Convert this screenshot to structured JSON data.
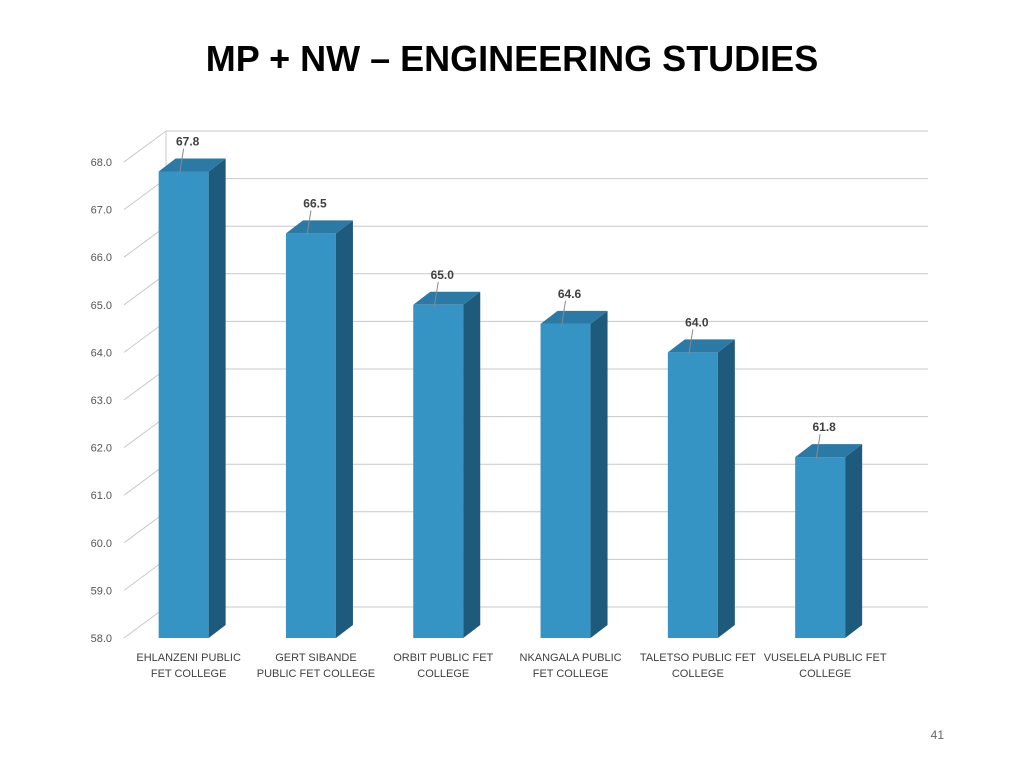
{
  "slide": {
    "title": "MP + NW – ENGINEERING STUDIES",
    "page_number": "41"
  },
  "chart_data": {
    "type": "bar",
    "style": "3d-column",
    "title": "MP + NW – ENGINEERING STUDIES",
    "categories": [
      [
        "EHLANZENI PUBLIC",
        "FET COLLEGE"
      ],
      [
        "GERT SIBANDE",
        "PUBLIC FET COLLEGE"
      ],
      [
        "ORBIT PUBLIC FET",
        "COLLEGE"
      ],
      [
        "NKANGALA PUBLIC",
        "FET COLLEGE"
      ],
      [
        "TALETSO PUBLIC FET",
        "COLLEGE"
      ],
      [
        "VUSELELA PUBLIC FET",
        "COLLEGE"
      ]
    ],
    "values": [
      67.8,
      66.5,
      65.0,
      64.6,
      64.0,
      61.8
    ],
    "data_labels": [
      "67.8",
      "66.5",
      "65.0",
      "64.6",
      "64.0",
      "61.8"
    ],
    "ylim": [
      58,
      68
    ],
    "yticks": [
      "58.0",
      "59.0",
      "60.0",
      "61.0",
      "62.0",
      "63.0",
      "64.0",
      "65.0",
      "66.0",
      "67.0",
      "68.0"
    ],
    "grid": true,
    "legend": "none",
    "colors": {
      "bar_front": "#3594c4",
      "bar_side": "#1e5a7c",
      "bar_top": "#2a7aa5",
      "grid": "#c8c8c8",
      "tick_text": "#555555",
      "label_text": "#404040"
    }
  }
}
